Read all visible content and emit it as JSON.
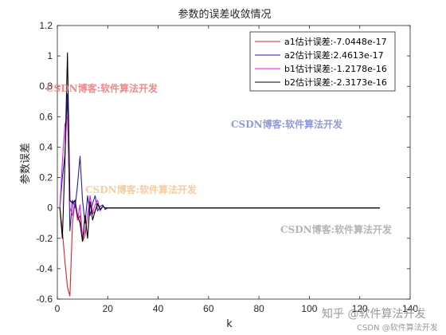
{
  "chart_data": {
    "type": "line",
    "title": "参数的误差收敛情况",
    "xlabel": "k",
    "ylabel": "参数误差",
    "xlim": [
      0,
      140
    ],
    "ylim": [
      -0.6,
      1.2
    ],
    "xticks": [
      "0",
      "20",
      "40",
      "60",
      "80",
      "100",
      "120",
      "140"
    ],
    "yticks": [
      "-0.6",
      "-0.4",
      "-0.2",
      "0",
      "0.2",
      "0.4",
      "0.6",
      "0.8",
      "1",
      "1.2"
    ],
    "grid": false,
    "legend_position": "top-right",
    "series": [
      {
        "name": "a1估计误差:-7.0448e-17",
        "color": "#d62728",
        "x": [
          1,
          2,
          3,
          4,
          5,
          6,
          7,
          8,
          9,
          10,
          11,
          12,
          13,
          14,
          15,
          16,
          17,
          18,
          19,
          20,
          22,
          24,
          26,
          28,
          30,
          128
        ],
        "y": [
          0,
          -0.15,
          -0.35,
          -0.52,
          -0.58,
          -0.1,
          0.05,
          -0.08,
          -0.05,
          -0.22,
          -0.18,
          -0.05,
          0.03,
          -0.04,
          -0.02,
          0.02,
          -0.01,
          0.01,
          0,
          0,
          0,
          0,
          0,
          0,
          0,
          0
        ]
      },
      {
        "name": "a2估计误差:2.4613e-17",
        "color": "#1f1fb4",
        "x": [
          1,
          2,
          3,
          4,
          5,
          6,
          7,
          8,
          9,
          10,
          11,
          12,
          13,
          14,
          15,
          16,
          17,
          18,
          19,
          20,
          22,
          24,
          26,
          28,
          30,
          128
        ],
        "y": [
          0,
          0.2,
          0.35,
          0.75,
          -0.15,
          0.05,
          0.0,
          0.15,
          0.34,
          0.05,
          -0.1,
          0.08,
          -0.05,
          0.03,
          0.08,
          -0.02,
          0.01,
          0.02,
          -0.01,
          0,
          0,
          0,
          0,
          0,
          0,
          0
        ]
      },
      {
        "name": "b1估计误差:-1.2178e-16",
        "color": "#e619e6",
        "x": [
          1,
          2,
          3,
          4,
          5,
          6,
          7,
          8,
          9,
          10,
          11,
          12,
          13,
          14,
          15,
          16,
          17,
          18,
          19,
          20,
          22,
          24,
          26,
          28,
          30,
          128
        ],
        "y": [
          0,
          0.3,
          0.55,
          0.6,
          0.0,
          -0.05,
          0.05,
          -0.08,
          0.02,
          -0.2,
          -0.15,
          -0.05,
          0.08,
          -0.03,
          0.02,
          0.05,
          -0.02,
          0.01,
          0,
          0,
          0,
          0,
          0,
          0,
          0,
          0
        ]
      },
      {
        "name": "b2估计误差:-2.3173e-16",
        "color": "#000000",
        "x": [
          1,
          2,
          3,
          4,
          5,
          6,
          7,
          8,
          9,
          10,
          11,
          12,
          13,
          14,
          15,
          16,
          17,
          18,
          19,
          20,
          22,
          24,
          26,
          28,
          30,
          128
        ],
        "y": [
          0,
          -0.2,
          0.3,
          1.02,
          0.05,
          0.03,
          0.05,
          -0.05,
          -0.1,
          -0.22,
          -0.05,
          -0.2,
          0.04,
          -0.08,
          -0.02,
          0.03,
          -0.01,
          0.01,
          0,
          0,
          0,
          0,
          0,
          0,
          0,
          0
        ]
      }
    ]
  },
  "watermarks": {
    "text": "CSDN博客:软件算法开发",
    "colors": [
      "#e8777a",
      "#7f88d6",
      "#f3c48f",
      "#a8a8a8"
    ],
    "corner_main": "知乎 @软件算法开发",
    "corner_sub": "CSDN @软件算法开发"
  }
}
